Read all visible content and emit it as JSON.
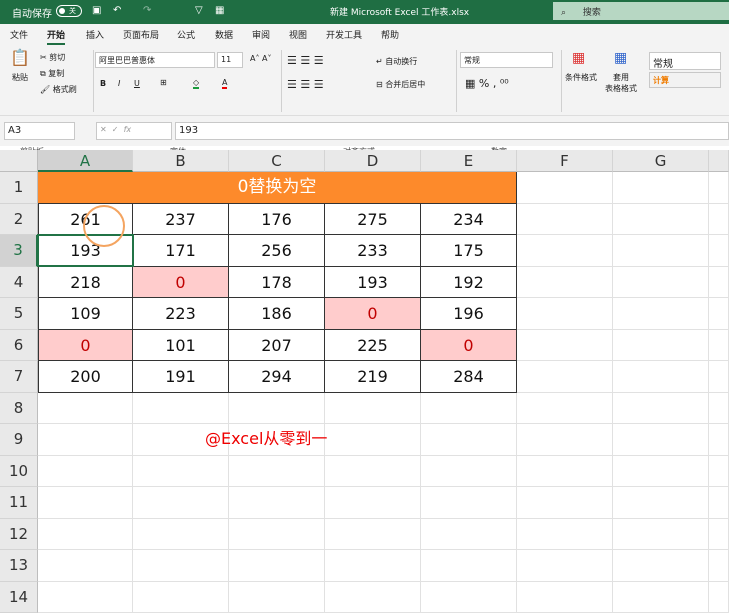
{
  "titlebar": {
    "autosave": "自动保存",
    "toggle": "关",
    "title": "新建 Microsoft Excel 工作表.xlsx",
    "search": "搜索"
  },
  "menu": [
    "文件",
    "开始",
    "插入",
    "页面布局",
    "公式",
    "数据",
    "审阅",
    "视图",
    "开发工具",
    "帮助"
  ],
  "ribbon": {
    "paste": "粘贴",
    "cut": "剪切",
    "copy": "复制",
    "format_painter": "格式刷",
    "clipboard": "剪贴板",
    "font_name": "阿里巴巴普惠体",
    "font_size": "11",
    "font_group": "字体",
    "wrap": "自动换行",
    "merge": "合并后居中",
    "align_group": "对齐方式",
    "number_format": "常规",
    "number_group": "数字",
    "cond_format": "条件格式",
    "table_format": "套用\n表格格式",
    "style_normal": "常规",
    "style_calc": "计算",
    "bold": "B",
    "italic": "I",
    "underline": "U"
  },
  "formula": {
    "namebox": "A3",
    "value": "193",
    "fx": "fx"
  },
  "columns": [
    "A",
    "B",
    "C",
    "D",
    "E",
    "F",
    "G"
  ],
  "rows": [
    "1",
    "2",
    "3",
    "4",
    "5",
    "6",
    "7",
    "8",
    "9",
    "10",
    "11",
    "12",
    "13",
    "14"
  ],
  "sheet": {
    "title": "0替换为空",
    "title_bg": "#fd8a2b",
    "zero_bg": "#ffcccc",
    "data": [
      [
        "261",
        "237",
        "176",
        "275",
        "234"
      ],
      [
        "193",
        "171",
        "256",
        "233",
        "175"
      ],
      [
        "218",
        "0",
        "178",
        "193",
        "192"
      ],
      [
        "109",
        "223",
        "186",
        "0",
        "196"
      ],
      [
        "0",
        "101",
        "207",
        "225",
        "0"
      ],
      [
        "200",
        "191",
        "294",
        "219",
        "284"
      ]
    ],
    "watermark": "@Excel从零到一"
  }
}
